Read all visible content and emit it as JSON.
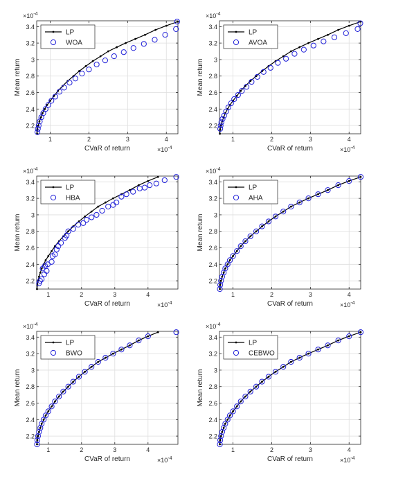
{
  "chart_data": [
    {
      "type": "scatter",
      "title": "",
      "xlabel": "CVaR of return",
      "ylabel": "Mean return",
      "x_exponent": "×10",
      "x_exponent_power": "-4",
      "y_exponent": "×10",
      "y_exponent_power": "-4",
      "xlim": [
        0.65,
        4.3
      ],
      "ylim": [
        2.1,
        3.47
      ],
      "xticks": [
        1,
        2,
        3,
        4
      ],
      "yticks": [
        2.2,
        2.4,
        2.6,
        2.8,
        3.0,
        3.2,
        3.4
      ],
      "grid": true,
      "legend_position": "top-left",
      "series": [
        {
          "name": "LP",
          "style": "line-dots",
          "color": "#000000",
          "x": [
            0.66,
            0.67,
            0.69,
            0.72,
            0.76,
            0.8,
            0.86,
            0.92,
            1.0,
            1.1,
            1.2,
            1.32,
            1.45,
            1.6,
            1.75,
            1.92,
            2.1,
            2.3,
            2.5,
            2.72,
            2.95,
            3.2,
            3.45,
            3.72,
            4.0,
            4.3
          ],
          "y": [
            2.1,
            2.15,
            2.2,
            2.25,
            2.3,
            2.35,
            2.4,
            2.45,
            2.5,
            2.56,
            2.62,
            2.68,
            2.74,
            2.8,
            2.86,
            2.92,
            2.98,
            3.04,
            3.1,
            3.15,
            3.2,
            3.25,
            3.3,
            3.36,
            3.41,
            3.46
          ]
        },
        {
          "name": "WOA",
          "style": "circles",
          "color": "#1f1fd8",
          "x": [
            0.67,
            0.68,
            0.7,
            0.73,
            0.77,
            0.82,
            0.88,
            0.95,
            1.03,
            1.13,
            1.24,
            1.36,
            1.5,
            1.65,
            1.82,
            2.0,
            2.2,
            2.42,
            2.65,
            2.9,
            3.15,
            3.42,
            3.7,
            3.97,
            4.25,
            4.28
          ],
          "y": [
            2.12,
            2.16,
            2.2,
            2.25,
            2.3,
            2.35,
            2.4,
            2.45,
            2.5,
            2.55,
            2.61,
            2.66,
            2.72,
            2.77,
            2.83,
            2.88,
            2.94,
            2.99,
            3.04,
            3.09,
            3.14,
            3.19,
            3.24,
            3.3,
            3.37,
            3.46
          ]
        }
      ]
    },
    {
      "type": "scatter",
      "title": "",
      "xlabel": "CVaR of return",
      "ylabel": "Mean return",
      "x_exponent": "×10",
      "x_exponent_power": "-4",
      "y_exponent": "×10",
      "y_exponent_power": "-4",
      "xlim": [
        0.65,
        4.3
      ],
      "ylim": [
        2.1,
        3.47
      ],
      "xticks": [
        1,
        2,
        3,
        4
      ],
      "yticks": [
        2.2,
        2.4,
        2.6,
        2.8,
        3.0,
        3.2,
        3.4
      ],
      "grid": true,
      "legend_position": "top-left",
      "series": [
        {
          "name": "LP",
          "style": "line-dots",
          "color": "#000000",
          "x": [
            0.66,
            0.67,
            0.69,
            0.72,
            0.76,
            0.8,
            0.86,
            0.92,
            1.0,
            1.1,
            1.2,
            1.32,
            1.45,
            1.6,
            1.75,
            1.92,
            2.1,
            2.3,
            2.5,
            2.72,
            2.95,
            3.2,
            3.45,
            3.72,
            4.0,
            4.3
          ],
          "y": [
            2.1,
            2.15,
            2.2,
            2.25,
            2.3,
            2.35,
            2.4,
            2.45,
            2.5,
            2.56,
            2.62,
            2.68,
            2.74,
            2.8,
            2.86,
            2.92,
            2.98,
            3.04,
            3.1,
            3.15,
            3.2,
            3.25,
            3.3,
            3.36,
            3.41,
            3.46
          ]
        },
        {
          "name": "AVOA",
          "style": "circles",
          "color": "#1f1fd8",
          "x": [
            0.67,
            0.68,
            0.7,
            0.73,
            0.77,
            0.82,
            0.88,
            0.95,
            1.03,
            1.13,
            1.23,
            1.35,
            1.48,
            1.63,
            1.79,
            1.97,
            2.16,
            2.37,
            2.59,
            2.83,
            3.08,
            3.34,
            3.62,
            3.92,
            4.22,
            4.29
          ],
          "y": [
            2.16,
            2.2,
            2.24,
            2.28,
            2.32,
            2.37,
            2.42,
            2.47,
            2.52,
            2.57,
            2.62,
            2.67,
            2.73,
            2.79,
            2.85,
            2.9,
            2.96,
            3.01,
            3.07,
            3.12,
            3.17,
            3.22,
            3.27,
            3.32,
            3.37,
            3.44
          ]
        }
      ]
    },
    {
      "type": "scatter",
      "title": "",
      "xlabel": "CVaR of return",
      "ylabel": "Mean return",
      "x_exponent": "×10",
      "x_exponent_power": "-4",
      "y_exponent": "×10",
      "y_exponent_power": "-4",
      "xlim": [
        0.65,
        4.9
      ],
      "ylim": [
        2.1,
        3.47
      ],
      "xticks": [
        1,
        2,
        3,
        4
      ],
      "yticks": [
        2.2,
        2.4,
        2.6,
        2.8,
        3.0,
        3.2,
        3.4
      ],
      "grid": true,
      "legend_position": "top-left",
      "series": [
        {
          "name": "LP",
          "style": "line-dots",
          "color": "#000000",
          "x": [
            0.66,
            0.67,
            0.69,
            0.72,
            0.76,
            0.8,
            0.86,
            0.92,
            1.0,
            1.1,
            1.2,
            1.32,
            1.45,
            1.6,
            1.75,
            1.92,
            2.1,
            2.3,
            2.5,
            2.72,
            2.95,
            3.2,
            3.45,
            3.72,
            4.0,
            4.3
          ],
          "y": [
            2.1,
            2.15,
            2.2,
            2.25,
            2.3,
            2.35,
            2.4,
            2.45,
            2.5,
            2.56,
            2.62,
            2.68,
            2.74,
            2.8,
            2.86,
            2.92,
            2.98,
            3.04,
            3.1,
            3.15,
            3.2,
            3.25,
            3.3,
            3.36,
            3.41,
            3.46
          ]
        },
        {
          "name": "HBA",
          "style": "circles",
          "color": "#1f1fd8",
          "x": [
            0.72,
            0.75,
            0.8,
            0.83,
            0.88,
            0.9,
            0.95,
            0.98,
            1.1,
            1.13,
            1.2,
            1.25,
            1.3,
            1.38,
            1.5,
            1.55,
            1.6,
            1.75,
            1.9,
            2.05,
            2.15,
            2.3,
            2.45,
            2.62,
            2.8,
            2.95,
            3.05,
            3.2,
            3.35,
            3.55,
            3.75,
            3.9,
            4.05,
            4.25,
            4.5,
            4.85
          ],
          "y": [
            2.17,
            2.2,
            2.22,
            2.35,
            2.28,
            2.38,
            2.32,
            2.4,
            2.43,
            2.5,
            2.52,
            2.58,
            2.62,
            2.66,
            2.72,
            2.75,
            2.8,
            2.83,
            2.88,
            2.9,
            2.94,
            2.97,
            3.0,
            3.05,
            3.1,
            3.12,
            3.15,
            3.22,
            3.25,
            3.28,
            3.32,
            3.33,
            3.36,
            3.38,
            3.42,
            3.46
          ]
        }
      ]
    },
    {
      "type": "scatter",
      "title": "",
      "xlabel": "CVaR of return",
      "ylabel": "Mean return",
      "x_exponent": "×10",
      "x_exponent_power": "-4",
      "y_exponent": "×10",
      "y_exponent_power": "-4",
      "xlim": [
        0.65,
        4.3
      ],
      "ylim": [
        2.1,
        3.47
      ],
      "xticks": [
        1,
        2,
        3,
        4
      ],
      "yticks": [
        2.2,
        2.4,
        2.6,
        2.8,
        3.0,
        3.2,
        3.4
      ],
      "grid": true,
      "legend_position": "top-left",
      "series": [
        {
          "name": "LP",
          "style": "line-dots",
          "color": "#000000",
          "x": [
            0.66,
            0.67,
            0.69,
            0.72,
            0.76,
            0.8,
            0.86,
            0.92,
            1.0,
            1.1,
            1.2,
            1.32,
            1.45,
            1.6,
            1.75,
            1.92,
            2.1,
            2.3,
            2.5,
            2.72,
            2.95,
            3.2,
            3.45,
            3.72,
            4.0,
            4.3
          ],
          "y": [
            2.1,
            2.15,
            2.2,
            2.25,
            2.3,
            2.35,
            2.4,
            2.45,
            2.5,
            2.56,
            2.62,
            2.68,
            2.74,
            2.8,
            2.86,
            2.92,
            2.98,
            3.04,
            3.1,
            3.15,
            3.2,
            3.25,
            3.3,
            3.36,
            3.41,
            3.46
          ]
        },
        {
          "name": "AHA",
          "style": "circles",
          "color": "#1f1fd8",
          "x": [
            0.66,
            0.67,
            0.69,
            0.72,
            0.76,
            0.8,
            0.86,
            0.92,
            1.0,
            1.1,
            1.2,
            1.32,
            1.45,
            1.6,
            1.75,
            1.92,
            2.1,
            2.3,
            2.5,
            2.72,
            2.95,
            3.2,
            3.45,
            3.72,
            4.0,
            4.3
          ],
          "y": [
            2.1,
            2.15,
            2.2,
            2.25,
            2.3,
            2.35,
            2.4,
            2.45,
            2.5,
            2.56,
            2.62,
            2.68,
            2.74,
            2.8,
            2.86,
            2.92,
            2.98,
            3.04,
            3.1,
            3.15,
            3.2,
            3.25,
            3.3,
            3.36,
            3.41,
            3.46
          ]
        }
      ]
    },
    {
      "type": "scatter",
      "title": "",
      "xlabel": "CVaR of return",
      "ylabel": "Mean return",
      "x_exponent": "×10",
      "x_exponent_power": "-4",
      "y_exponent": "×10",
      "y_exponent_power": "-4",
      "xlim": [
        0.65,
        4.9
      ],
      "ylim": [
        2.1,
        3.47
      ],
      "xticks": [
        1,
        2,
        3,
        4
      ],
      "yticks": [
        2.2,
        2.4,
        2.6,
        2.8,
        3.0,
        3.2,
        3.4
      ],
      "grid": true,
      "legend_position": "top-left",
      "series": [
        {
          "name": "LP",
          "style": "line-dots",
          "color": "#000000",
          "x": [
            0.66,
            0.67,
            0.69,
            0.72,
            0.76,
            0.8,
            0.86,
            0.92,
            1.0,
            1.1,
            1.2,
            1.32,
            1.45,
            1.6,
            1.75,
            1.92,
            2.1,
            2.3,
            2.5,
            2.72,
            2.95,
            3.2,
            3.45,
            3.72,
            4.0,
            4.3
          ],
          "y": [
            2.1,
            2.15,
            2.2,
            2.25,
            2.3,
            2.35,
            2.4,
            2.45,
            2.5,
            2.56,
            2.62,
            2.68,
            2.74,
            2.8,
            2.86,
            2.92,
            2.98,
            3.04,
            3.1,
            3.15,
            3.2,
            3.25,
            3.3,
            3.36,
            3.41,
            3.46
          ]
        },
        {
          "name": "BWO",
          "style": "circles",
          "color": "#1f1fd8",
          "x": [
            0.66,
            0.67,
            0.69,
            0.72,
            0.76,
            0.8,
            0.86,
            0.92,
            1.0,
            1.1,
            1.2,
            1.32,
            1.45,
            1.6,
            1.75,
            1.92,
            2.1,
            2.3,
            2.5,
            2.72,
            2.95,
            3.2,
            3.45,
            3.72,
            4.0,
            4.85
          ],
          "y": [
            2.1,
            2.15,
            2.2,
            2.25,
            2.3,
            2.35,
            2.4,
            2.45,
            2.5,
            2.56,
            2.62,
            2.68,
            2.74,
            2.8,
            2.86,
            2.92,
            2.98,
            3.04,
            3.1,
            3.15,
            3.2,
            3.25,
            3.3,
            3.36,
            3.41,
            3.46
          ]
        }
      ]
    },
    {
      "type": "scatter",
      "title": "",
      "xlabel": "CVaR of return",
      "ylabel": "Mean return",
      "x_exponent": "×10",
      "x_exponent_power": "-4",
      "y_exponent": "×10",
      "y_exponent_power": "-4",
      "xlim": [
        0.65,
        4.3
      ],
      "ylim": [
        2.1,
        3.47
      ],
      "xticks": [
        1,
        2,
        3,
        4
      ],
      "yticks": [
        2.2,
        2.4,
        2.6,
        2.8,
        3.0,
        3.2,
        3.4
      ],
      "grid": true,
      "legend_position": "top-left",
      "series": [
        {
          "name": "LP",
          "style": "line-dots",
          "color": "#000000",
          "x": [
            0.66,
            0.67,
            0.69,
            0.72,
            0.76,
            0.8,
            0.86,
            0.92,
            1.0,
            1.1,
            1.2,
            1.32,
            1.45,
            1.6,
            1.75,
            1.92,
            2.1,
            2.3,
            2.5,
            2.72,
            2.95,
            3.2,
            3.45,
            3.72,
            4.0,
            4.3
          ],
          "y": [
            2.1,
            2.15,
            2.2,
            2.25,
            2.3,
            2.35,
            2.4,
            2.45,
            2.5,
            2.56,
            2.62,
            2.68,
            2.74,
            2.8,
            2.86,
            2.92,
            2.98,
            3.04,
            3.1,
            3.15,
            3.2,
            3.25,
            3.3,
            3.36,
            3.41,
            3.46
          ]
        },
        {
          "name": "CEBWO",
          "style": "circles",
          "color": "#1f1fd8",
          "x": [
            0.66,
            0.67,
            0.69,
            0.72,
            0.76,
            0.8,
            0.86,
            0.92,
            1.0,
            1.1,
            1.2,
            1.32,
            1.45,
            1.6,
            1.75,
            1.92,
            2.1,
            2.3,
            2.5,
            2.72,
            2.95,
            3.2,
            3.45,
            3.72,
            4.0,
            4.3
          ],
          "y": [
            2.1,
            2.15,
            2.2,
            2.25,
            2.3,
            2.35,
            2.4,
            2.45,
            2.5,
            2.56,
            2.62,
            2.68,
            2.74,
            2.8,
            2.86,
            2.92,
            2.98,
            3.04,
            3.1,
            3.15,
            3.2,
            3.25,
            3.3,
            3.36,
            3.41,
            3.46
          ]
        }
      ]
    }
  ]
}
